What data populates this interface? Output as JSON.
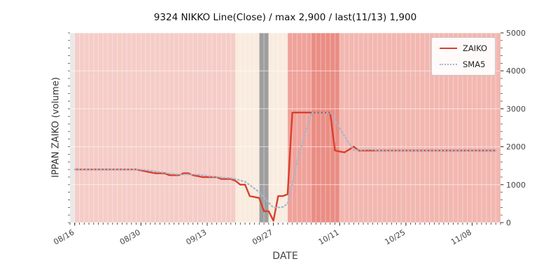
{
  "title": "9324 NIKKO Line(Close) / max 2,900 / last(11/13) 1,900",
  "x_axis_label": "DATE",
  "y_axis_label": "IPPAN ZAIKO (volume)",
  "legend": {
    "items": [
      {
        "label": "ZAIKO",
        "color": "#d8402c",
        "style": "solid"
      },
      {
        "label": "SMA5",
        "color": "#a4b6cc",
        "style": "dotted"
      }
    ]
  },
  "chart_data": {
    "type": "line",
    "title": "9324 NIKKO Line(Close) / max 2,900 / last(11/13) 1,900",
    "xlabel": "DATE",
    "ylabel": "IPPAN ZAIKO (volume)",
    "x_domain": [
      "08/15",
      "11/14"
    ],
    "ylim": [
      0,
      5000
    ],
    "y_ticks": [
      0,
      1000,
      2000,
      3000,
      4000,
      5000
    ],
    "y_minor_tick_step": 200,
    "x_ticks": [
      "08/16",
      "08/30",
      "09/13",
      "09/27",
      "10/11",
      "10/25",
      "11/08"
    ],
    "max_value": 2900,
    "last": {
      "date": "11/13",
      "value": 1900
    },
    "plot_bg": "#ebebeb",
    "grid_color": "#ffffff",
    "series": [
      {
        "name": "ZAIKO",
        "color": "#d8402c",
        "style": "solid",
        "points": [
          [
            "08/16",
            1400
          ],
          [
            "08/29",
            1400
          ],
          [
            "08/31",
            1350
          ],
          [
            "09/02",
            1300
          ],
          [
            "09/04",
            1300
          ],
          [
            "09/05",
            1250
          ],
          [
            "09/07",
            1250
          ],
          [
            "09/08",
            1300
          ],
          [
            "09/09",
            1300
          ],
          [
            "09/10",
            1250
          ],
          [
            "09/12",
            1200
          ],
          [
            "09/15",
            1200
          ],
          [
            "09/16",
            1150
          ],
          [
            "09/18",
            1150
          ],
          [
            "09/19",
            1100
          ],
          [
            "09/20",
            1000
          ],
          [
            "09/21",
            1000
          ],
          [
            "09/22",
            700
          ],
          [
            "09/24",
            650
          ],
          [
            "09/25",
            300
          ],
          [
            "09/26",
            300
          ],
          [
            "09/27",
            50
          ],
          [
            "09/28",
            700
          ],
          [
            "09/29",
            700
          ],
          [
            "09/30",
            750
          ],
          [
            "10/01",
            2900
          ],
          [
            "10/09",
            2900
          ],
          [
            "10/10",
            1900
          ],
          [
            "10/12",
            1850
          ],
          [
            "10/14",
            2000
          ],
          [
            "10/15",
            1900
          ],
          [
            "11/13",
            1900
          ]
        ]
      },
      {
        "name": "SMA5",
        "color": "#a4b6cc",
        "style": "dotted",
        "window": 5,
        "derived_from": "ZAIKO"
      }
    ],
    "background_bands": [
      {
        "start": "08/15",
        "end": "08/16",
        "color": "#e9e9e9"
      },
      {
        "start": "08/16",
        "end": "09/19",
        "color": "#f5ccc7"
      },
      {
        "start": "09/19",
        "end": "09/24",
        "color": "#f9ecdf"
      },
      {
        "start": "09/24",
        "end": "09/26",
        "color": "#9e9e9e"
      },
      {
        "start": "09/26",
        "end": "09/30",
        "color": "#f9ecdf"
      },
      {
        "start": "09/30",
        "end": "10/05",
        "color": "#efa29a"
      },
      {
        "start": "10/05",
        "end": "10/11",
        "color": "#ea8d84"
      },
      {
        "start": "10/11",
        "end": "11/14",
        "color": "#f2b7b0"
      }
    ]
  }
}
